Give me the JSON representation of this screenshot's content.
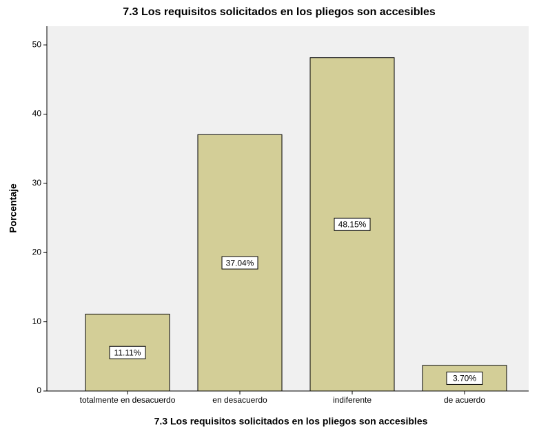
{
  "chart_data": {
    "type": "bar",
    "title": "7.3 Los requisitos solicitados en los pliegos son accesibles",
    "x_label": "7.3 Los requisitos solicitados en los pliegos son accesibles",
    "y_label": "Porcentaje",
    "categories": [
      "totalmente en desacuerdo",
      "en desacuerdo",
      "indiferente",
      "de acuerdo"
    ],
    "values": [
      11.11,
      37.04,
      48.15,
      3.7
    ],
    "value_labels": [
      "11.11%",
      "37.04%",
      "48.15%",
      "3.70%"
    ],
    "color": "#d3ce97",
    "ylim": [
      0,
      52.7
    ],
    "yticks": [
      0,
      10,
      20,
      30,
      40,
      50
    ],
    "grid": false
  }
}
